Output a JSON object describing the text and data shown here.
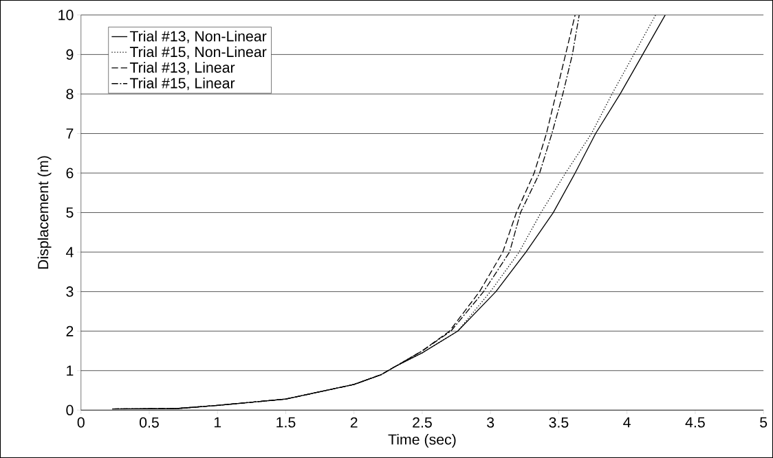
{
  "chart_data": {
    "type": "line",
    "xlabel": "Time (sec)",
    "ylabel": "Displacement (m)",
    "xlim": [
      0,
      5
    ],
    "ylim": [
      0,
      10
    ],
    "xticks": [
      0,
      0.5,
      1,
      1.5,
      2,
      2.5,
      3,
      3.5,
      4,
      4.5,
      5
    ],
    "yticks": [
      0,
      1,
      2,
      3,
      4,
      5,
      6,
      7,
      8,
      9,
      10
    ],
    "grid": "y",
    "legend": "top left",
    "marker": "none",
    "series": [
      {
        "name": "Trial #13, Non-Linear",
        "color": "#000000",
        "line_style": "solid",
        "x": [
          0.23,
          0.7,
          1,
          1.5,
          2,
          2.2,
          2.3,
          2.5,
          2.76,
          3.04,
          3.26,
          3.46,
          3.62,
          3.77,
          3.95,
          4.28
        ],
        "values": [
          0.03,
          0.04,
          0.12,
          0.28,
          0.65,
          0.9,
          1.1,
          1.45,
          2,
          3,
          4,
          5,
          6,
          7,
          8,
          10
        ]
      },
      {
        "name": "Trial #15, Non-Linear",
        "color": "#000000",
        "line_style": "dotted",
        "x": [
          0.23,
          0.7,
          1,
          1.5,
          2,
          2.2,
          2.3,
          2.5,
          2.76,
          3.0,
          3.21,
          3.37,
          3.55,
          3.74,
          3.89,
          4.05,
          4.21
        ],
        "values": [
          0.03,
          0.04,
          0.12,
          0.28,
          0.65,
          0.9,
          1.1,
          1.45,
          2,
          3,
          4,
          5,
          6,
          7,
          8,
          9,
          10
        ]
      },
      {
        "name": "Trial #13, Linear",
        "color": "#000000",
        "line_style": "dashed",
        "x": [
          0.23,
          0.7,
          1,
          1.5,
          2,
          2.2,
          2.3,
          2.5,
          2.7,
          2.92,
          3.09,
          3.19,
          3.32,
          3.41,
          3.48,
          3.55,
          3.62
        ],
        "values": [
          0.03,
          0.04,
          0.12,
          0.28,
          0.65,
          0.9,
          1.1,
          1.5,
          2,
          3,
          4,
          5,
          6,
          7,
          8,
          9,
          10
        ]
      },
      {
        "name": "Trial #15, Linear",
        "color": "#000000",
        "line_style": "dashdot",
        "x": [
          0.23,
          0.7,
          1,
          1.5,
          2,
          2.2,
          2.3,
          2.5,
          2.71,
          2.95,
          3.14,
          3.22,
          3.36,
          3.45,
          3.53,
          3.6,
          3.65
        ],
        "values": [
          0.03,
          0.04,
          0.12,
          0.28,
          0.65,
          0.9,
          1.1,
          1.5,
          2,
          3,
          4,
          5,
          6,
          7,
          8,
          9,
          10
        ]
      }
    ]
  }
}
